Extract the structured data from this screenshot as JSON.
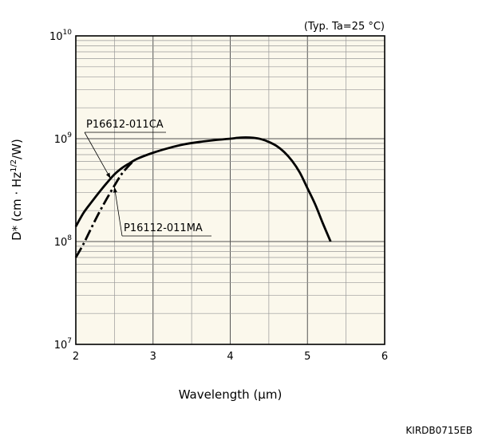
{
  "chart_data": {
    "type": "line",
    "title": "",
    "condition_note": "(Typ. Ta=25 °C)",
    "xlabel": "Wavelength (µm)",
    "ylabel": "D* (cm · Hz",
    "ylabel_sup": "1/2",
    "ylabel_tail": "/W)",
    "xlim": [
      2,
      6
    ],
    "ylim": [
      10000000,
      10000000000
    ],
    "y_scale": "log",
    "grid": true,
    "x_ticks": [
      {
        "value": 2,
        "label": "2"
      },
      {
        "value": 3,
        "label": "3"
      },
      {
        "value": 4,
        "label": "4"
      },
      {
        "value": 5,
        "label": "5"
      },
      {
        "value": 6,
        "label": "6"
      }
    ],
    "y_ticks": [
      {
        "value": 10000000,
        "base": "10",
        "exp": "7"
      },
      {
        "value": 100000000,
        "base": "10",
        "exp": "8"
      },
      {
        "value": 1000000000,
        "base": "10",
        "exp": "9"
      },
      {
        "value": 10000000000,
        "base": "10",
        "exp": "10"
      }
    ],
    "series": [
      {
        "name": "P16612-011CA",
        "style": "solid",
        "color": "#000000",
        "x": [
          2.0,
          2.1,
          2.2,
          2.3,
          2.4,
          2.5,
          2.6,
          2.7,
          2.8,
          3.0,
          3.2,
          3.4,
          3.6,
          3.8,
          4.0,
          4.1,
          4.2,
          4.3,
          4.4,
          4.5,
          4.6,
          4.7,
          4.8,
          4.9,
          5.0,
          5.1,
          5.2,
          5.3
        ],
        "y": [
          140000000,
          190000000,
          240000000,
          300000000,
          370000000,
          450000000,
          520000000,
          580000000,
          640000000,
          730000000,
          810000000,
          880000000,
          930000000,
          970000000,
          1000000000,
          1020000000,
          1030000000,
          1020000000,
          990000000,
          930000000,
          850000000,
          740000000,
          610000000,
          470000000,
          330000000,
          230000000,
          150000000,
          100000000
        ]
      },
      {
        "name": "P16112-011MA",
        "style": "dash-dot",
        "color": "#000000",
        "x": [
          2.0,
          2.1,
          2.2,
          2.3,
          2.4,
          2.5,
          2.6,
          2.7,
          2.75
        ],
        "y": [
          70000000,
          95000000,
          135000000,
          190000000,
          260000000,
          350000000,
          460000000,
          560000000,
          610000000
        ]
      }
    ],
    "annotations": [
      {
        "text": "P16612-011CA",
        "series": "P16612-011CA",
        "point": [
          2.45,
          410000000
        ]
      },
      {
        "text": "P16112-011MA",
        "series": "P16112-011MA",
        "point": [
          2.5,
          340000000
        ]
      }
    ]
  },
  "document_code": "KIRDB0715EB"
}
